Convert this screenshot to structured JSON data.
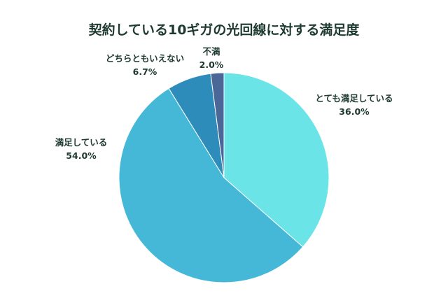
{
  "chart_data": {
    "type": "pie",
    "title": "契約している10ギガの光回線に対する満足度",
    "start_angle": "top, clockwise",
    "slices": [
      {
        "label": "とても満足している",
        "value": 36.0,
        "value_label": "36.0%",
        "color": "#6be4e8"
      },
      {
        "label": "満足している",
        "value": 54.0,
        "value_label": "54.0%",
        "color": "#45b8d8"
      },
      {
        "label": "どちらともいえない",
        "value": 6.7,
        "value_label": "6.7%",
        "color": "#2e8cba"
      },
      {
        "label": "不満",
        "value": 2.0,
        "value_label": "2.0%",
        "color": "#4b6797"
      }
    ]
  }
}
